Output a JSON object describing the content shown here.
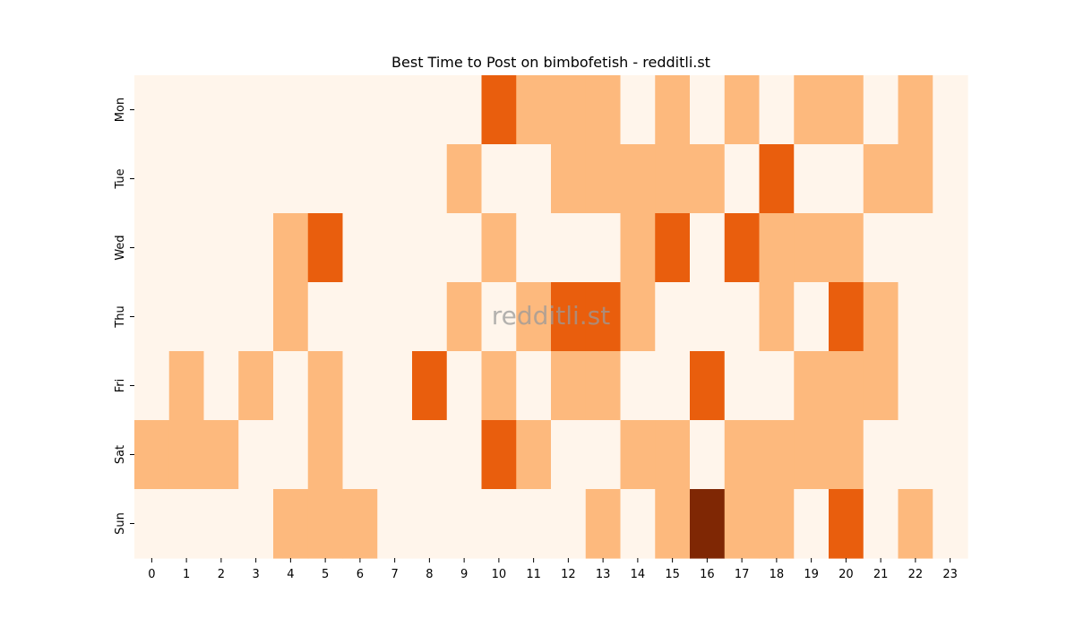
{
  "chart_data": {
    "type": "heatmap",
    "title": "Best Time to Post on bimbofetish - redditli.st",
    "watermark": "redditli.st",
    "x_categories": [
      "0",
      "1",
      "2",
      "3",
      "4",
      "5",
      "6",
      "7",
      "8",
      "9",
      "10",
      "11",
      "12",
      "13",
      "14",
      "15",
      "16",
      "17",
      "18",
      "19",
      "20",
      "21",
      "22",
      "23"
    ],
    "y_categories": [
      "Mon",
      "Tue",
      "Wed",
      "Thu",
      "Fri",
      "Sat",
      "Sun"
    ],
    "values": [
      [
        0,
        0,
        0,
        0,
        0,
        0,
        0,
        0,
        0,
        0,
        2,
        1,
        1,
        1,
        0,
        1,
        0,
        1,
        0,
        1,
        1,
        0,
        1,
        0
      ],
      [
        0,
        0,
        0,
        0,
        0,
        0,
        0,
        0,
        0,
        1,
        0,
        0,
        1,
        1,
        1,
        1,
        1,
        0,
        2,
        0,
        0,
        1,
        1,
        0
      ],
      [
        0,
        0,
        0,
        0,
        1,
        2,
        0,
        0,
        0,
        0,
        1,
        0,
        0,
        0,
        1,
        2,
        0,
        2,
        1,
        1,
        1,
        0,
        0,
        0
      ],
      [
        0,
        0,
        0,
        0,
        1,
        0,
        0,
        0,
        0,
        1,
        0,
        1,
        2,
        2,
        1,
        0,
        0,
        0,
        1,
        0,
        2,
        1,
        0,
        0
      ],
      [
        0,
        1,
        0,
        1,
        0,
        1,
        0,
        0,
        2,
        0,
        1,
        0,
        1,
        1,
        0,
        0,
        2,
        0,
        0,
        1,
        1,
        1,
        0,
        0
      ],
      [
        1,
        1,
        1,
        0,
        0,
        1,
        0,
        0,
        0,
        0,
        2,
        1,
        0,
        0,
        1,
        1,
        0,
        1,
        1,
        1,
        1,
        0,
        0,
        0
      ],
      [
        0,
        0,
        0,
        0,
        1,
        1,
        1,
        0,
        0,
        0,
        0,
        0,
        0,
        1,
        0,
        1,
        3,
        1,
        1,
        0,
        2,
        0,
        1,
        0
      ]
    ],
    "color_scale": {
      "0": "#fff5eb",
      "1": "#fdb97d",
      "2": "#e95e0d",
      "3": "#7f2704"
    },
    "colorbar": false,
    "grid": false,
    "xlabel": "",
    "ylabel": ""
  }
}
